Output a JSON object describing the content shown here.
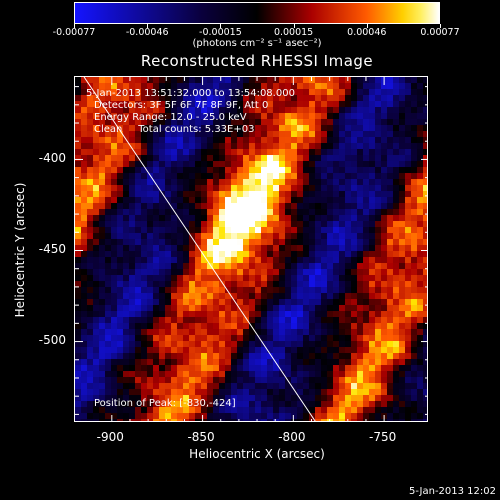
{
  "colorbar": {
    "labels": [
      "-0.00077",
      "-0.00046",
      "-0.00015",
      "0.00015",
      "0.00046",
      "0.00077"
    ],
    "units": "(photons cm⁻² s⁻¹ asec⁻²)"
  },
  "chart_data": {
    "type": "heatmap",
    "title": "Reconstructed RHESSI Image",
    "xlabel": "Heliocentric X (arcsec)",
    "ylabel": "Heliocentric Y (arcsec)",
    "xlim": [
      -920,
      -725
    ],
    "ylim": [
      -545,
      -355
    ],
    "xticks": [
      "-900",
      "-850",
      "-800",
      "-750"
    ],
    "yticks": [
      "-400",
      "-450",
      "-500"
    ],
    "ytick_values": [
      -400,
      -450,
      -500
    ],
    "xtick_values": [
      -900,
      -850,
      -800,
      -750
    ],
    "color_range": [
      -0.00077,
      0.00077
    ],
    "colormap": "blue-black-red-yellow-white",
    "limb_line": [
      [
        -915,
        -355
      ],
      [
        -787,
        -545
      ]
    ],
    "peak": [
      -830,
      -424
    ]
  },
  "info": {
    "time_range": "5-Jan-2013 13:51:32.000 to 13:54:08.000",
    "detectors": "Detectors: 3F 5F 6F 7F 8F 9F, Att 0",
    "energy": "Energy Range: 12.0 - 25.0 keV",
    "clean": "Clean     Total counts: 5.33E+03",
    "peak": "Position of Peak: [-830,-424]"
  },
  "footer": "5-Jan-2013 12:02"
}
